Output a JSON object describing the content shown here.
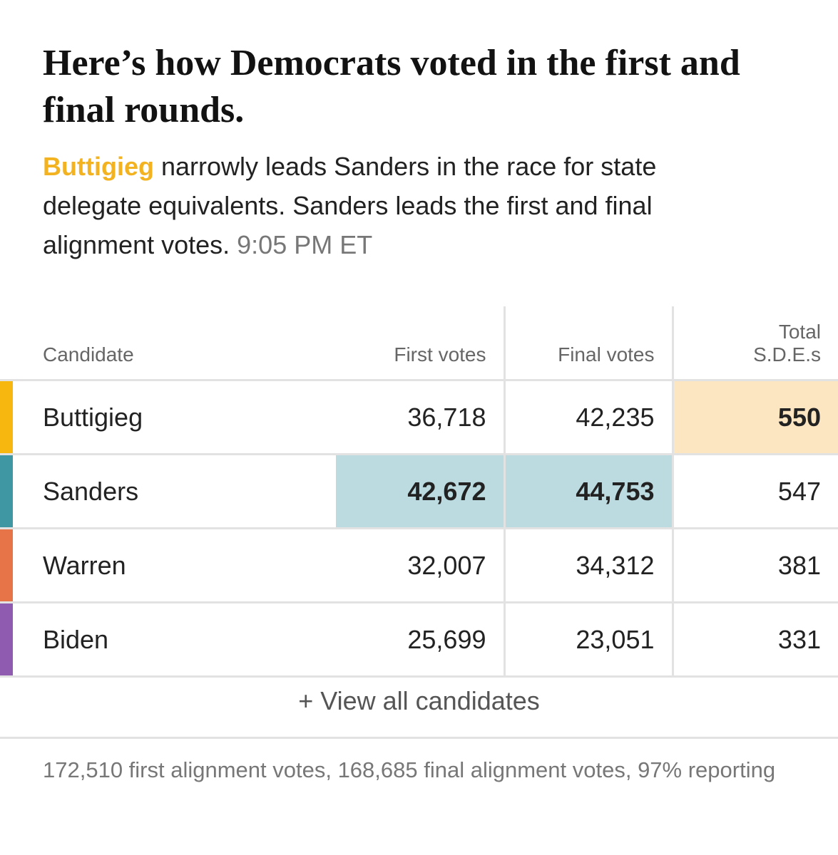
{
  "headline": "Here’s how Democrats voted in the first and final rounds.",
  "dek": {
    "lead_name": "Buttigieg",
    "text": " narrowly leads Sanders in the race for state delegate equivalents. Sanders leads the first and final alignment votes. ",
    "timestamp": "9:05 PM ET"
  },
  "colors": {
    "buttigieg": "#f7b70f",
    "sanders": "#3e97a3",
    "warren": "#e67448",
    "biden": "#8f5bb0",
    "sde_highlight": "#fce6c1",
    "votes_highlight": "#bcdbe1"
  },
  "table": {
    "headers": {
      "candidate": "Candidate",
      "first_votes": "First votes",
      "final_votes": "Final votes",
      "sde_line1": "Total",
      "sde_line2": "S.D.E.s"
    },
    "rows": [
      {
        "name": "Buttigieg",
        "first": "36,718",
        "final": "42,235",
        "sde": "550"
      },
      {
        "name": "Sanders",
        "first": "42,672",
        "final": "44,753",
        "sde": "547"
      },
      {
        "name": "Warren",
        "first": "32,007",
        "final": "34,312",
        "sde": "381"
      },
      {
        "name": "Biden",
        "first": "25,699",
        "final": "23,051",
        "sde": "331"
      }
    ]
  },
  "view_all_label": "+ View all candidates",
  "footnote": "172,510 first alignment votes, 168,685 final alignment votes, 97% reporting"
}
